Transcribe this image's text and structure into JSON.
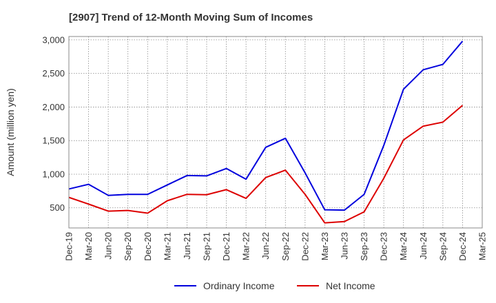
{
  "chart_data": {
    "type": "line",
    "title": "[2907]  Trend of 12-Month Moving Sum of Incomes",
    "xlabel": "",
    "ylabel": "Amount (million yen)",
    "ylim": [
      200,
      3050
    ],
    "yticks": [
      500,
      1000,
      1500,
      2000,
      2500,
      3000
    ],
    "ytick_labels": [
      "500",
      "1,000",
      "1,500",
      "2,000",
      "2,500",
      "3,000"
    ],
    "categories": [
      "Dec-19",
      "Mar-20",
      "Jun-20",
      "Sep-20",
      "Dec-20",
      "Mar-21",
      "Jun-21",
      "Sep-21",
      "Dec-21",
      "Mar-22",
      "Jun-22",
      "Sep-22",
      "Dec-22",
      "Mar-23",
      "Jun-23",
      "Sep-23",
      "Dec-23",
      "Mar-24",
      "Jun-24",
      "Sep-24",
      "Dec-24",
      "Mar-25"
    ],
    "grid": true,
    "legend_position": "bottom-center",
    "series": [
      {
        "name": "Ordinary Income",
        "color": "#0000dd",
        "values": [
          780,
          850,
          685,
          700,
          700,
          840,
          980,
          975,
          1085,
          925,
          1400,
          1535,
          1020,
          470,
          465,
          700,
          1430,
          2265,
          2555,
          2635,
          2980,
          null
        ]
      },
      {
        "name": "Net Income",
        "color": "#dd0000",
        "values": [
          655,
          555,
          450,
          460,
          420,
          605,
          700,
          695,
          770,
          640,
          950,
          1060,
          700,
          275,
          295,
          440,
          940,
          1510,
          1715,
          1775,
          2025,
          null
        ]
      }
    ]
  }
}
